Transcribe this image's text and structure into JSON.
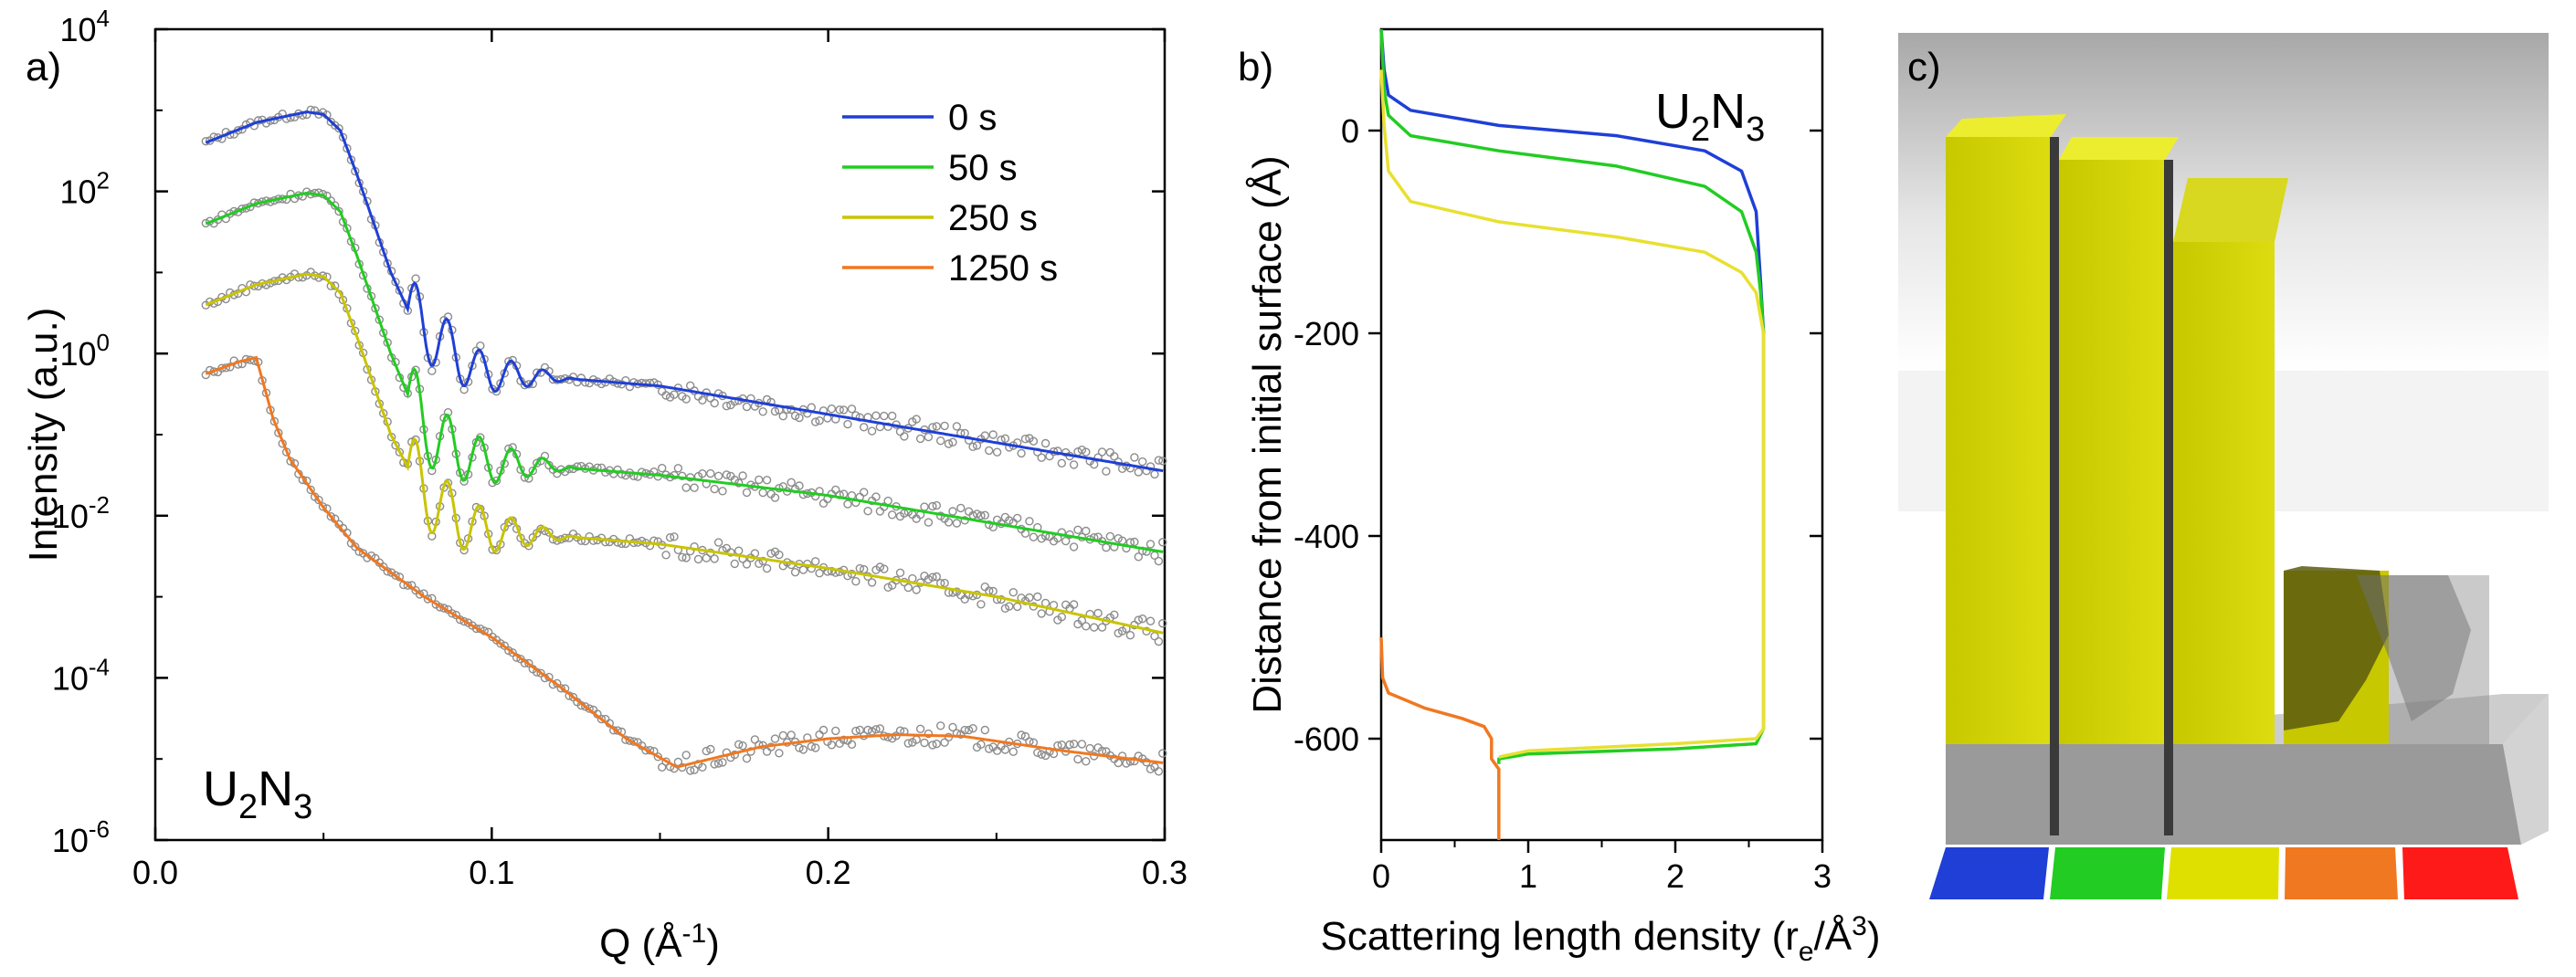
{
  "chart_data": [
    {
      "panel": "a)",
      "type": "line",
      "xlabel": "Q (Å",
      "xlabel_sup": "-1",
      "xlabel_tail": ")",
      "ylabel": "Intensity (a.u.)",
      "yscale": "log",
      "xlim": [
        0.0,
        0.3
      ],
      "ylim_exp": [
        -6,
        4
      ],
      "xticks": [
        "0.0",
        "0.1",
        "0.2",
        "0.3"
      ],
      "xtick_values": [
        0.0,
        0.1,
        0.2,
        0.3
      ],
      "yticks": [
        {
          "base": "10",
          "exp": "-6",
          "e": -6
        },
        {
          "base": "10",
          "exp": "-4",
          "e": -4
        },
        {
          "base": "10",
          "exp": "-2",
          "e": -2
        },
        {
          "base": "10",
          "exp": "0",
          "e": 0
        },
        {
          "base": "10",
          "exp": "2",
          "e": 2
        },
        {
          "base": "10",
          "exp": "4",
          "e": 4
        }
      ],
      "annotation": {
        "text": "U",
        "sub1": "2",
        "mid": "N",
        "sub2": "3"
      },
      "series": [
        {
          "name": "0 s",
          "color": "#1f3fd6",
          "scale_exp": 0,
          "Q": [
            0.015,
            0.03,
            0.045,
            0.05,
            0.055,
            0.06,
            0.065,
            0.07,
            0.075,
            0.08,
            0.085,
            0.09,
            0.095,
            0.1,
            0.12,
            0.15,
            0.2,
            0.25,
            0.3
          ],
          "logI": [
            2.6,
            2.85,
            2.98,
            2.95,
            2.75,
            2.2,
            1.6,
            1.0,
            0.55,
            0.3,
            0.15,
            -0.05,
            -0.2,
            -0.25,
            -0.3,
            -0.4,
            -0.75,
            -1.1,
            -1.45
          ]
        },
        {
          "name": "50 s",
          "color": "#22cc22",
          "scale_exp": -1,
          "Q": [
            0.015,
            0.03,
            0.045,
            0.05,
            0.055,
            0.06,
            0.065,
            0.07,
            0.075,
            0.08,
            0.085,
            0.09,
            0.095,
            0.1,
            0.12,
            0.15,
            0.2,
            0.25,
            0.3
          ],
          "logI": [
            1.6,
            1.85,
            1.98,
            1.95,
            1.75,
            1.2,
            0.6,
            0.0,
            -0.5,
            -0.9,
            -1.1,
            -1.2,
            -1.3,
            -1.35,
            -1.4,
            -1.5,
            -1.75,
            -2.1,
            -2.45
          ]
        },
        {
          "name": "250 s",
          "color": "#c9c400",
          "scale_exp": -2,
          "Q": [
            0.015,
            0.03,
            0.045,
            0.05,
            0.055,
            0.06,
            0.065,
            0.07,
            0.075,
            0.08,
            0.085,
            0.09,
            0.095,
            0.1,
            0.12,
            0.15,
            0.2,
            0.25,
            0.3
          ],
          "logI": [
            0.6,
            0.85,
            0.98,
            0.95,
            0.75,
            0.2,
            -0.4,
            -1.0,
            -1.4,
            -1.7,
            -1.9,
            -2.05,
            -2.15,
            -2.2,
            -2.25,
            -2.35,
            -2.65,
            -3.0,
            -3.45
          ]
        },
        {
          "name": "1250 s",
          "color": "#f07820",
          "scale_exp": -3,
          "Q": [
            0.015,
            0.025,
            0.03,
            0.035,
            0.04,
            0.05,
            0.06,
            0.08,
            0.1,
            0.12,
            0.14,
            0.155,
            0.16,
            0.18,
            0.2,
            0.22,
            0.24,
            0.27,
            0.3
          ],
          "logI": [
            -0.25,
            -0.1,
            -0.05,
            -0.8,
            -1.3,
            -1.9,
            -2.4,
            -3.0,
            -3.5,
            -4.1,
            -4.75,
            -5.1,
            -5.05,
            -4.85,
            -4.75,
            -4.7,
            -4.72,
            -4.9,
            -5.05
          ]
        }
      ],
      "legend_position": "top-right",
      "data_markers": "grey open circles"
    },
    {
      "panel": "b)",
      "type": "line",
      "xlabel": "Scattering length density (r",
      "xlabel_sub": "e",
      "xlabel_tail": "/Å",
      "xlabel_sup": "3",
      "xlabel_end": ")",
      "ylabel": "Distance from initial surface (Å)",
      "xlim": [
        0,
        3
      ],
      "ylim": [
        -700,
        100
      ],
      "xticks": [
        "0",
        "1",
        "2",
        "3"
      ],
      "xtick_values": [
        0,
        1,
        2,
        3
      ],
      "yticks": [
        "0",
        "-200",
        "-400",
        "-600"
      ],
      "ytick_values": [
        0,
        -200,
        -400,
        -600
      ],
      "annotation": {
        "text": "U",
        "sub1": "2",
        "mid": "N",
        "sub2": "3"
      },
      "series": [
        {
          "name": "0 s",
          "color": "#1f3fd6",
          "points": [
            [
              0.0,
              100
            ],
            [
              0.02,
              60
            ],
            [
              0.05,
              35
            ],
            [
              0.2,
              20
            ],
            [
              0.8,
              5
            ],
            [
              1.6,
              -5
            ],
            [
              2.2,
              -20
            ],
            [
              2.45,
              -40
            ],
            [
              2.55,
              -80
            ],
            [
              2.58,
              -150
            ],
            [
              2.6,
              -200
            ]
          ]
        },
        {
          "name": "50 s",
          "color": "#22cc22",
          "points": [
            [
              0.0,
              100
            ],
            [
              0.02,
              40
            ],
            [
              0.05,
              15
            ],
            [
              0.2,
              -5
            ],
            [
              0.8,
              -20
            ],
            [
              1.6,
              -35
            ],
            [
              2.2,
              -55
            ],
            [
              2.45,
              -80
            ],
            [
              2.55,
              -120
            ],
            [
              2.58,
              -160
            ],
            [
              2.6,
              -200
            ],
            [
              2.6,
              -590
            ],
            [
              2.55,
              -605
            ],
            [
              2.0,
              -610
            ],
            [
              1.0,
              -615
            ],
            [
              0.8,
              -620
            ],
            [
              0.8,
              -625
            ]
          ]
        },
        {
          "name": "250 s",
          "color": "#e8e030",
          "points": [
            [
              0.0,
              60
            ],
            [
              0.02,
              5
            ],
            [
              0.05,
              -40
            ],
            [
              0.2,
              -70
            ],
            [
              0.8,
              -90
            ],
            [
              1.6,
              -105
            ],
            [
              2.2,
              -120
            ],
            [
              2.45,
              -140
            ],
            [
              2.55,
              -160
            ],
            [
              2.6,
              -200
            ],
            [
              2.6,
              -590
            ],
            [
              2.55,
              -600
            ],
            [
              2.0,
              -605
            ],
            [
              1.0,
              -612
            ],
            [
              0.8,
              -618
            ]
          ]
        },
        {
          "name": "1250 s",
          "color": "#f07820",
          "points": [
            [
              0.0,
              -500
            ],
            [
              0.01,
              -540
            ],
            [
              0.05,
              -555
            ],
            [
              0.3,
              -570
            ],
            [
              0.55,
              -580
            ],
            [
              0.7,
              -588
            ],
            [
              0.75,
              -600
            ],
            [
              0.75,
              -620
            ],
            [
              0.8,
              -630
            ],
            [
              0.8,
              -700
            ]
          ]
        }
      ]
    },
    {
      "panel": "c)",
      "type": "diagram",
      "description_colors": [
        "#1f3fd6",
        "#22cc22",
        "#e0e000",
        "#f07820",
        "#ff1a1a"
      ]
    }
  ]
}
